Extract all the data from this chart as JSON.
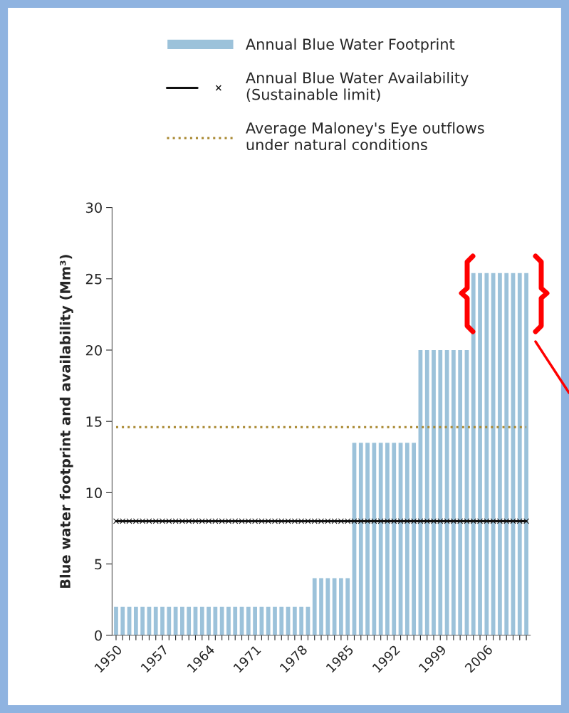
{
  "chart_data": {
    "type": "bar",
    "ylabel": "Blue water footprint and availability (Mm³)",
    "categories": [
      "1950",
      null,
      null,
      null,
      null,
      null,
      null,
      "1957",
      null,
      null,
      null,
      null,
      null,
      null,
      "1964",
      null,
      null,
      null,
      null,
      null,
      null,
      "1971",
      null,
      null,
      null,
      null,
      null,
      null,
      "1978",
      null,
      null,
      null,
      null,
      null,
      null,
      "1985",
      null,
      null,
      null,
      null,
      null,
      null,
      "1992",
      null,
      null,
      null,
      null,
      null,
      null,
      "1999",
      null,
      null,
      null,
      null,
      null,
      null,
      "2006",
      null,
      null,
      null,
      null,
      null,
      null
    ],
    "series": [
      {
        "name": "Annual Blue Water Footprint",
        "color": "#9cc2da",
        "values": [
          2,
          2,
          2,
          2,
          2,
          2,
          2,
          2,
          2,
          2,
          2,
          2,
          2,
          2,
          2,
          2,
          2,
          2,
          2,
          2,
          2,
          2,
          2,
          2,
          2,
          2,
          2,
          2,
          2,
          2,
          4,
          4,
          4,
          4,
          4,
          4,
          13.5,
          13.5,
          13.5,
          13.5,
          13.5,
          13.5,
          13.5,
          13.5,
          13.5,
          13.5,
          20,
          20,
          20,
          20,
          20,
          20,
          20,
          20,
          25.4,
          25.4,
          25.4,
          25.4,
          25.4,
          25.4,
          25.4,
          25.4,
          25.4
        ]
      },
      {
        "name": "Annual Blue Water Availability\n(Sustainable limit)",
        "type": "line",
        "color": "#111111",
        "marker": "cross",
        "line_style": "solid",
        "values": [
          8,
          8,
          8,
          8,
          8,
          8,
          8,
          8,
          8,
          8,
          8,
          8,
          8,
          8,
          8,
          8,
          8,
          8,
          8,
          8,
          8,
          8,
          8,
          8,
          8,
          8,
          8,
          8,
          8,
          8,
          8,
          8,
          8,
          8,
          8,
          8,
          8,
          8,
          8,
          8,
          8,
          8,
          8,
          8,
          8,
          8,
          8,
          8,
          8,
          8,
          8,
          8,
          8,
          8,
          8,
          8,
          8,
          8,
          8,
          8,
          8,
          8,
          8
        ]
      },
      {
        "name": "Average Maloney's Eye outflows\nunder natural conditions",
        "type": "line",
        "color": "#a8872e",
        "marker": "none",
        "line_style": "dotted",
        "values": [
          14.6,
          14.6,
          14.6,
          14.6,
          14.6,
          14.6,
          14.6,
          14.6,
          14.6,
          14.6,
          14.6,
          14.6,
          14.6,
          14.6,
          14.6,
          14.6,
          14.6,
          14.6,
          14.6,
          14.6,
          14.6,
          14.6,
          14.6,
          14.6,
          14.6,
          14.6,
          14.6,
          14.6,
          14.6,
          14.6,
          14.6,
          14.6,
          14.6,
          14.6,
          14.6,
          14.6,
          14.6,
          14.6,
          14.6,
          14.6,
          14.6,
          14.6,
          14.6,
          14.6,
          14.6,
          14.6,
          14.6,
          14.6,
          14.6,
          14.6,
          14.6,
          14.6,
          14.6,
          14.6,
          14.6,
          14.6,
          14.6,
          14.6,
          14.6,
          14.6,
          14.6,
          14.6,
          14.6
        ]
      }
    ],
    "ylim": [
      0,
      30
    ],
    "yticks": [
      0,
      5,
      10,
      15,
      20,
      25,
      30
    ],
    "grid": false,
    "legend": "top"
  }
}
